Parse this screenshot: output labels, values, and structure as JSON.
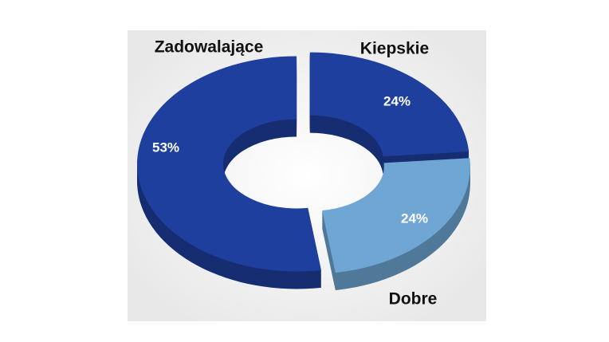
{
  "chart_data": {
    "type": "donut",
    "categories": [
      "Kiepskie",
      "Dobre",
      "Zadowalające"
    ],
    "values": [
      24,
      24,
      53
    ],
    "value_labels": [
      "24%",
      "24%",
      "53%"
    ],
    "colors": [
      "#1f3f9f",
      "#6fa6d4",
      "#1f3f9f"
    ]
  }
}
